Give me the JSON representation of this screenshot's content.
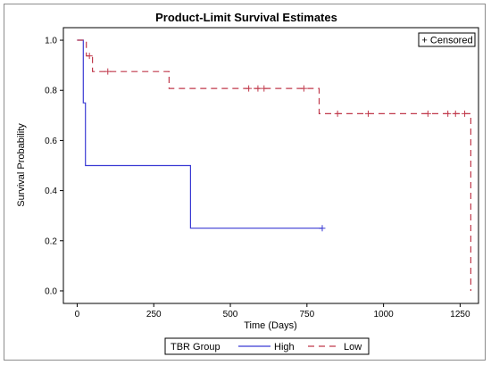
{
  "chart_data": {
    "type": "line",
    "step": true,
    "title": "Product-Limit Survival Estimates",
    "xlabel": "Time (Days)",
    "ylabel": "Survival Probability",
    "xlim": [
      -45,
      1310
    ],
    "ylim": [
      -0.05,
      1.05
    ],
    "xticks": [
      0,
      250,
      500,
      750,
      1000,
      1250
    ],
    "yticks": [
      "0.0",
      "0.2",
      "0.4",
      "0.6",
      "0.8",
      "1.0"
    ],
    "grid": false,
    "censor_legend": "+ Censored",
    "censor_legend_position": "top-right",
    "legend": {
      "title": "TBR Group",
      "position": "bottom",
      "entries": [
        {
          "name": "High",
          "style": "solid"
        },
        {
          "name": "Low",
          "style": "dashed"
        }
      ]
    },
    "series": [
      {
        "name": "High",
        "color": "#3b3bd4",
        "dash": "none",
        "points": [
          [
            0,
            1.0
          ],
          [
            20,
            1.0
          ],
          [
            20,
            0.75
          ],
          [
            27,
            0.75
          ],
          [
            27,
            0.5
          ],
          [
            370,
            0.5
          ],
          [
            370,
            0.25
          ],
          [
            800,
            0.25
          ]
        ],
        "censored": [
          [
            800,
            0.25
          ]
        ]
      },
      {
        "name": "Low",
        "color": "#c0394b",
        "dash": "7,5",
        "points": [
          [
            0,
            1.0
          ],
          [
            30,
            1.0
          ],
          [
            30,
            0.9375
          ],
          [
            50,
            0.9375
          ],
          [
            50,
            0.875
          ],
          [
            300,
            0.875
          ],
          [
            300,
            0.8077
          ],
          [
            790,
            0.8077
          ],
          [
            790,
            0.7067
          ],
          [
            1285,
            0.7067
          ],
          [
            1285,
            0.0
          ]
        ],
        "censored": [
          [
            40,
            0.9375
          ],
          [
            100,
            0.875
          ],
          [
            560,
            0.8077
          ],
          [
            590,
            0.8077
          ],
          [
            610,
            0.8077
          ],
          [
            740,
            0.8077
          ],
          [
            850,
            0.7067
          ],
          [
            950,
            0.7067
          ],
          [
            1145,
            0.7067
          ],
          [
            1210,
            0.7067
          ],
          [
            1235,
            0.7067
          ],
          [
            1265,
            0.7067
          ]
        ]
      }
    ]
  }
}
